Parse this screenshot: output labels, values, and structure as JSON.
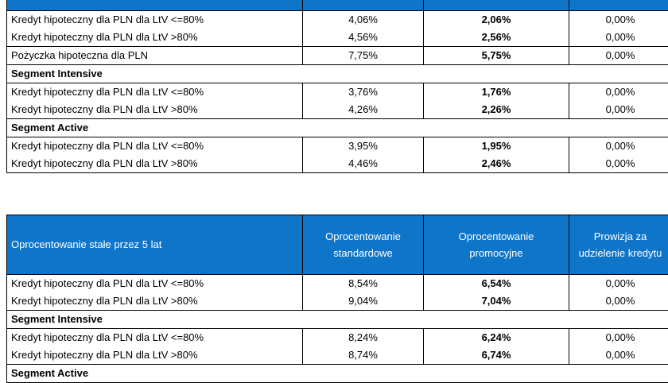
{
  "table1": {
    "rows": [
      {
        "kind": "row",
        "group": "first",
        "product": "Kredyt hipoteczny dla PLN dla LtV <=80%",
        "standard": "4,06%",
        "promo": "2,06%",
        "fee": "0,00%"
      },
      {
        "kind": "row",
        "group": "last",
        "product": "Kredyt hipoteczny dla PLN dla LtV >80%",
        "standard": "4,56%",
        "promo": "2,56%",
        "fee": "0,00%"
      },
      {
        "kind": "row",
        "group": "single",
        "product": "Pożyczka hipoteczna dla PLN",
        "standard": "7,75%",
        "promo": "5,75%",
        "fee": "0,00%"
      },
      {
        "kind": "segment",
        "label": "Segment Intensive"
      },
      {
        "kind": "row",
        "group": "first",
        "product": "Kredyt hipoteczny dla PLN dla LtV <=80%",
        "standard": "3,76%",
        "promo": "1,76%",
        "fee": "0,00%"
      },
      {
        "kind": "row",
        "group": "last",
        "product": "Kredyt hipoteczny dla PLN dla LtV >80%",
        "standard": "4,26%",
        "promo": "2,26%",
        "fee": "0,00%"
      },
      {
        "kind": "segment",
        "label": "Segment Active"
      },
      {
        "kind": "row",
        "group": "first",
        "product": "Kredyt hipoteczny dla PLN dla LtV <=80%",
        "standard": "3,95%",
        "promo": "1,95%",
        "fee": "0,00%"
      },
      {
        "kind": "row",
        "group": "last",
        "product": "Kredyt hipoteczny dla PLN dla LtV >80%",
        "standard": "4,46%",
        "promo": "2,46%",
        "fee": "0,00%"
      }
    ]
  },
  "table2": {
    "header": {
      "title": "Oprocentowanie stałe przez 5 lat",
      "col_standard": [
        "Oprocentowanie",
        "standardowe"
      ],
      "col_promo": [
        "Oprocentowanie",
        "promocyjne"
      ],
      "col_fee": [
        "Prowizja za",
        "udzielenie kredytu"
      ]
    },
    "rows": [
      {
        "kind": "row",
        "group": "first",
        "product": "Kredyt hipoteczny dla PLN dla LtV <=80%",
        "standard": "8,54%",
        "promo": "6,54%",
        "fee": "0,00%"
      },
      {
        "kind": "row",
        "group": "last",
        "product": "Kredyt hipoteczny dla PLN dla LtV >80%",
        "standard": "9,04%",
        "promo": "7,04%",
        "fee": "0,00%"
      },
      {
        "kind": "segment",
        "label": "Segment Intensive"
      },
      {
        "kind": "row",
        "group": "first",
        "product": "Kredyt hipoteczny dla PLN dla LtV <=80%",
        "standard": "8,24%",
        "promo": "6,24%",
        "fee": "0,00%"
      },
      {
        "kind": "row",
        "group": "last",
        "product": "Kredyt hipoteczny dla PLN dla LtV >80%",
        "standard": "8,74%",
        "promo": "6,74%",
        "fee": "0,00%"
      },
      {
        "kind": "segment",
        "label": "Segment Active"
      }
    ]
  },
  "colors": {
    "header_bg": "#0f75c8",
    "header_text": "#ffffff"
  }
}
